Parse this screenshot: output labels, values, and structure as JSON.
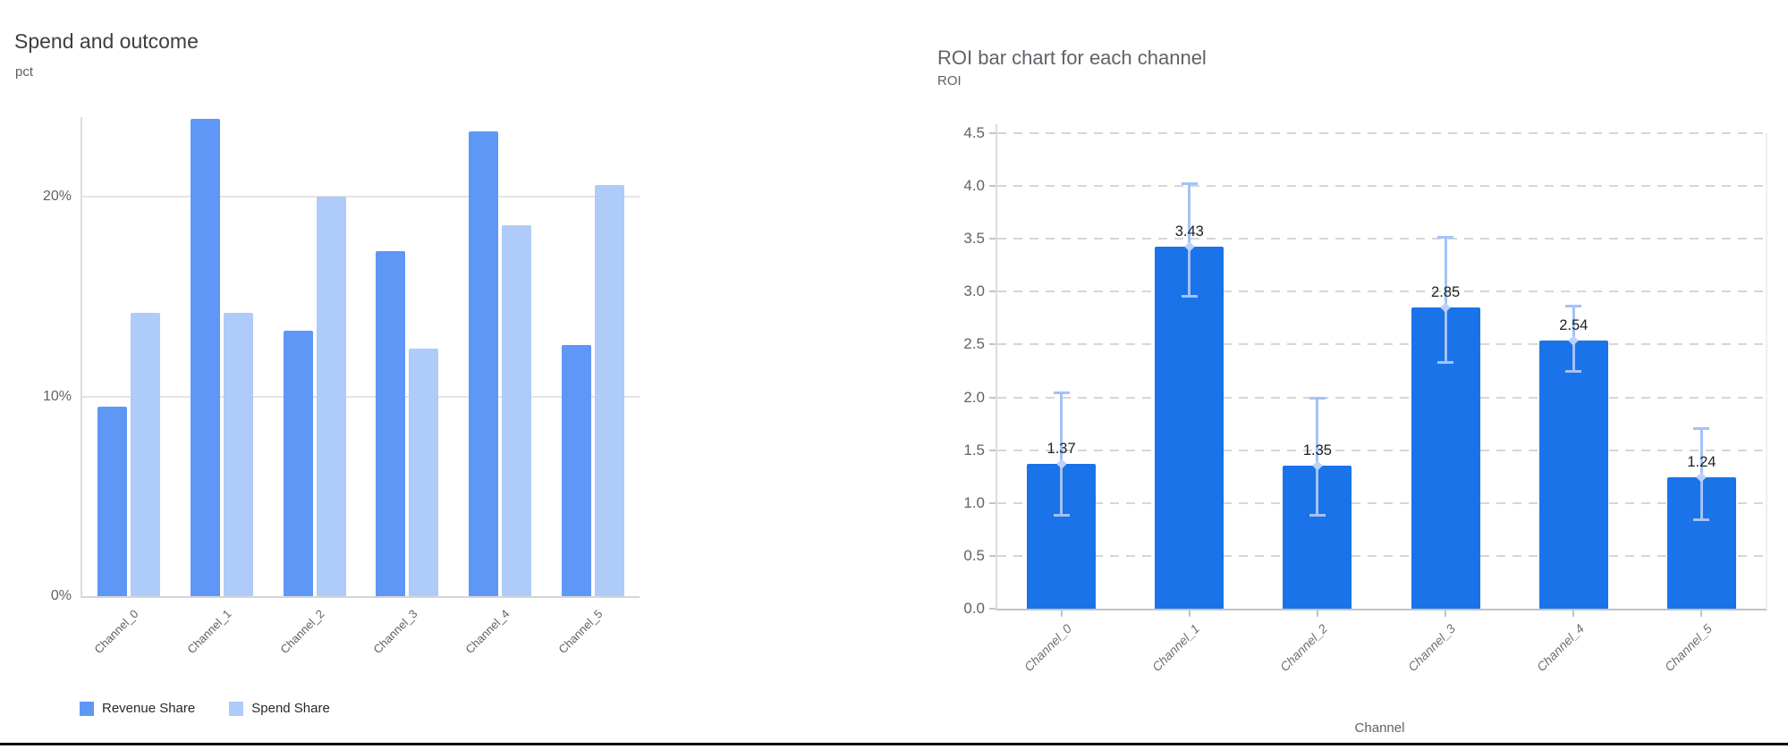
{
  "chart_data": [
    {
      "type": "bar",
      "title": "Spend and outcome",
      "ylabel": "pct",
      "xlabel": "",
      "categories": [
        "Channel_0",
        "Channel_1",
        "Channel_2",
        "Channel_3",
        "Channel_4",
        "Channel_5"
      ],
      "series": [
        {
          "name": "Revenue Share",
          "color": "#5e97f6",
          "values": [
            9.5,
            23.9,
            13.3,
            17.3,
            23.3,
            12.6
          ]
        },
        {
          "name": "Spend Share",
          "color": "#aecbfa",
          "values": [
            14.2,
            14.2,
            20.0,
            12.4,
            18.6,
            20.6
          ]
        }
      ],
      "y_ticks": [
        {
          "value": 0,
          "label": "0%"
        },
        {
          "value": 10,
          "label": "10%"
        },
        {
          "value": 20,
          "label": "20%"
        }
      ],
      "ylim": [
        0,
        24
      ],
      "grid": "horizontal-solid",
      "legend_position": "bottom-left"
    },
    {
      "type": "bar",
      "title": "ROI bar chart for each channel",
      "ylabel": "ROI",
      "xlabel": "Channel",
      "categories": [
        "Channel_0",
        "Channel_1",
        "Channel_2",
        "Channel_3",
        "Channel_4",
        "Channel_5"
      ],
      "series": [
        {
          "name": "ROI",
          "color": "#1a73e8",
          "values": [
            1.37,
            3.43,
            1.35,
            2.85,
            2.54,
            1.24
          ]
        }
      ],
      "value_labels": [
        "1.37",
        "3.43",
        "1.35",
        "2.85",
        "2.54",
        "1.24"
      ],
      "error_bars": {
        "color": "#a3c2f8",
        "low": [
          0.88,
          2.95,
          0.88,
          2.33,
          2.24,
          0.84
        ],
        "high": [
          2.05,
          4.03,
          2.0,
          3.52,
          2.87,
          1.71
        ]
      },
      "y_ticks": [
        {
          "value": 0,
          "label": "0.0"
        },
        {
          "value": 0.5,
          "label": "0.5"
        },
        {
          "value": 1,
          "label": "1.0"
        },
        {
          "value": 1.5,
          "label": "1.5"
        },
        {
          "value": 2,
          "label": "2.0"
        },
        {
          "value": 2.5,
          "label": "2.5"
        },
        {
          "value": 3,
          "label": "3.0"
        },
        {
          "value": 3.5,
          "label": "3.5"
        },
        {
          "value": 4,
          "label": "4.0"
        },
        {
          "value": 4.5,
          "label": "4.5"
        }
      ],
      "ylim": [
        0,
        4.5
      ],
      "grid": "horizontal-dashed",
      "legend_position": "none"
    }
  ]
}
